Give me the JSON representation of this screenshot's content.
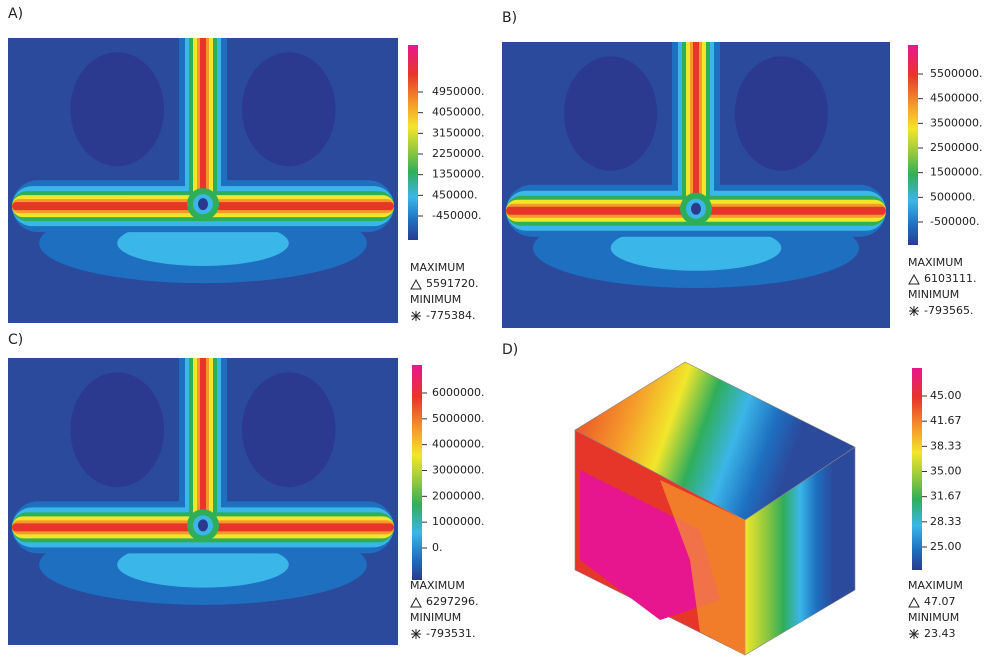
{
  "panels": [
    {
      "label": "A)",
      "colorbar": [
        "4950000.",
        "4050000.",
        "3150000.",
        "2250000.",
        "1350000.",
        "450000.",
        "-450000."
      ],
      "max_label": "MAXIMUM",
      "max": "5591720.",
      "min_label": "MINIMUM",
      "min": "-775384."
    },
    {
      "label": "B)",
      "colorbar": [
        "5500000.",
        "4500000.",
        "3500000.",
        "2500000.",
        "1500000.",
        "500000.",
        "-500000."
      ],
      "max_label": "MAXIMUM",
      "max": "6103111.",
      "min_label": "MINIMUM",
      "min": "-793565."
    },
    {
      "label": "C)",
      "colorbar": [
        "6000000.",
        "5000000.",
        "4000000.",
        "3000000.",
        "2000000.",
        "1000000.",
        "0."
      ],
      "max_label": "MAXIMUM",
      "max": "6297296.",
      "min_label": "MINIMUM",
      "min": "-793531."
    },
    {
      "label": "D)",
      "colorbar": [
        "45.00",
        "41.67",
        "38.33",
        "35.00",
        "31.67",
        "28.33",
        "25.00"
      ],
      "max_label": "MAXIMUM",
      "max": "47.07",
      "min_label": "MINIMUM",
      "min": "23.43"
    }
  ]
}
